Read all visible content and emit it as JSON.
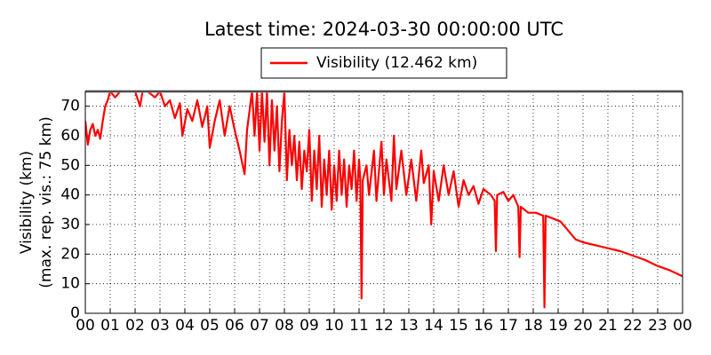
{
  "chart_data": {
    "type": "line",
    "title": "Latest time: 2024-03-30 00:00:00 UTC",
    "ylabel": [
      "Visibility (km)",
      "(max. rep. vis.: 75 km)"
    ],
    "xlim": [
      0,
      24
    ],
    "ylim": [
      0,
      75
    ],
    "yticks": [
      0,
      10,
      20,
      30,
      40,
      50,
      60,
      70
    ],
    "xticks": [
      {
        "value": 0,
        "label": "00"
      },
      {
        "value": 1,
        "label": "01"
      },
      {
        "value": 2,
        "label": "02"
      },
      {
        "value": 3,
        "label": "03"
      },
      {
        "value": 4,
        "label": "04"
      },
      {
        "value": 5,
        "label": "05"
      },
      {
        "value": 6,
        "label": "06"
      },
      {
        "value": 7,
        "label": "07"
      },
      {
        "value": 8,
        "label": "08"
      },
      {
        "value": 9,
        "label": "09"
      },
      {
        "value": 10,
        "label": "10"
      },
      {
        "value": 11,
        "label": "11"
      },
      {
        "value": 12,
        "label": "12"
      },
      {
        "value": 13,
        "label": "13"
      },
      {
        "value": 14,
        "label": "14"
      },
      {
        "value": 15,
        "label": "15"
      },
      {
        "value": 16,
        "label": "16"
      },
      {
        "value": 17,
        "label": "17"
      },
      {
        "value": 18,
        "label": "18"
      },
      {
        "value": 19,
        "label": "19"
      },
      {
        "value": 20,
        "label": "20"
      },
      {
        "value": 21,
        "label": "21"
      },
      {
        "value": 22,
        "label": "22"
      },
      {
        "value": 23,
        "label": "23"
      },
      {
        "value": 24,
        "label": "00"
      }
    ],
    "grid": true,
    "legend": "top",
    "series": [
      {
        "name": "Visibility (12.462 km)",
        "color": "#ff0000",
        "x": [
          0.0,
          0.1,
          0.2,
          0.3,
          0.4,
          0.5,
          0.6,
          0.7,
          0.8,
          0.9,
          1.0,
          1.2,
          1.4,
          1.6,
          1.8,
          2.0,
          2.2,
          2.3,
          2.5,
          2.8,
          3.0,
          3.2,
          3.4,
          3.6,
          3.8,
          3.9,
          4.1,
          4.3,
          4.5,
          4.7,
          4.9,
          5.0,
          5.2,
          5.4,
          5.6,
          5.8,
          6.0,
          6.2,
          6.4,
          6.5,
          6.7,
          6.8,
          6.9,
          7.0,
          7.1,
          7.2,
          7.3,
          7.4,
          7.5,
          7.6,
          7.7,
          7.8,
          7.9,
          8.0,
          8.1,
          8.2,
          8.3,
          8.4,
          8.5,
          8.6,
          8.7,
          8.8,
          8.9,
          9.0,
          9.1,
          9.2,
          9.3,
          9.4,
          9.5,
          9.6,
          9.7,
          9.8,
          9.9,
          10.0,
          10.1,
          10.2,
          10.3,
          10.4,
          10.5,
          10.6,
          10.7,
          10.8,
          10.9,
          11.0,
          11.05,
          11.1,
          11.15,
          11.3,
          11.4,
          11.6,
          11.7,
          11.9,
          12.0,
          12.1,
          12.3,
          12.4,
          12.5,
          12.7,
          12.9,
          13.1,
          13.3,
          13.5,
          13.6,
          13.8,
          13.9,
          14.0,
          14.2,
          14.4,
          14.6,
          14.8,
          15.0,
          15.2,
          15.4,
          15.6,
          15.8,
          16.0,
          16.3,
          16.45,
          16.5,
          16.55,
          16.8,
          17.0,
          17.2,
          17.4,
          17.45,
          17.5,
          17.8,
          18.1,
          18.4,
          18.45,
          18.5,
          18.8,
          19.1,
          19.4,
          19.7,
          20.0,
          20.5,
          21.0,
          21.5,
          22.0,
          22.5,
          23.0,
          23.5,
          24.0
        ],
        "values": [
          65,
          57,
          62,
          64,
          60,
          62,
          59,
          65,
          70,
          72,
          75,
          73,
          75,
          75,
          75,
          75,
          70,
          75,
          75,
          73,
          75,
          70,
          72,
          66,
          71,
          60,
          69,
          65,
          72,
          63,
          70,
          56,
          65,
          72,
          60,
          70,
          62,
          55,
          47,
          62,
          75,
          60,
          75,
          55,
          75,
          58,
          75,
          50,
          72,
          55,
          70,
          48,
          65,
          75,
          45,
          62,
          50,
          60,
          45,
          58,
          42,
          55,
          48,
          62,
          38,
          55,
          42,
          60,
          36,
          52,
          40,
          55,
          35,
          50,
          38,
          55,
          40,
          52,
          36,
          50,
          42,
          55,
          38,
          52,
          45,
          5,
          45,
          50,
          40,
          55,
          38,
          58,
          40,
          52,
          38,
          60,
          42,
          55,
          40,
          52,
          38,
          55,
          44,
          50,
          30,
          48,
          38,
          50,
          40,
          48,
          36,
          45,
          40,
          43,
          37,
          42,
          40,
          38,
          21,
          40,
          41,
          38,
          40,
          36,
          19,
          36,
          34,
          34,
          33,
          2,
          33,
          32,
          31,
          28,
          25,
          24,
          23,
          22,
          21,
          19.5,
          18,
          16,
          14.5,
          12.5
        ]
      }
    ]
  }
}
